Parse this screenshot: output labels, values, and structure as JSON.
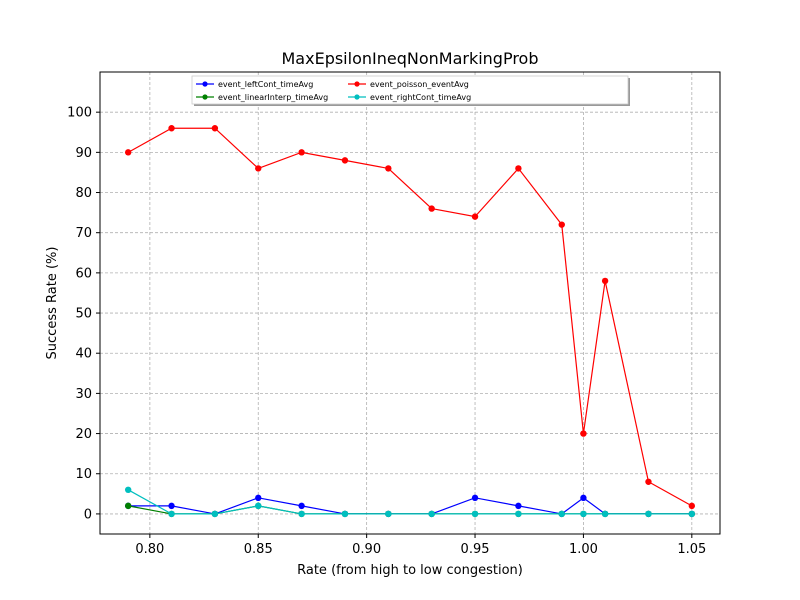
{
  "chart_data": {
    "type": "line",
    "title": "MaxEpsilonIneqNonMarkingProb",
    "xlabel": "Rate (from high to low congestion)",
    "ylabel": "Success Rate (%)",
    "xlim": [
      0.777,
      1.063
    ],
    "ylim": [
      -5,
      110
    ],
    "xticks": [
      "0.80",
      "0.85",
      "0.90",
      "0.95",
      "1.00",
      "1.05"
    ],
    "xtick_values": [
      0.8,
      0.85,
      0.9,
      0.95,
      1.0,
      1.05
    ],
    "yticks": [
      "0",
      "10",
      "20",
      "30",
      "40",
      "50",
      "60",
      "70",
      "80",
      "90",
      "100"
    ],
    "ytick_values": [
      0,
      10,
      20,
      30,
      40,
      50,
      60,
      70,
      80,
      90,
      100
    ],
    "grid": true,
    "legend_position": "top-center",
    "x": [
      0.79,
      0.81,
      0.83,
      0.85,
      0.87,
      0.89,
      0.91,
      0.93,
      0.95,
      0.97,
      0.99,
      1.0,
      1.01,
      1.03,
      1.05
    ],
    "series": [
      {
        "name": "event_leftCont_timeAvg",
        "color": "#0000ff",
        "values": [
          2,
          2,
          0,
          4,
          2,
          0,
          0,
          0,
          4,
          2,
          0,
          4,
          0,
          0,
          0
        ]
      },
      {
        "name": "event_linearInterp_timeAvg",
        "color": "#008000",
        "values": [
          2,
          0,
          0,
          2,
          0,
          0,
          0,
          0,
          0,
          0,
          0,
          0,
          0,
          0,
          0
        ]
      },
      {
        "name": "event_poisson_eventAvg",
        "color": "#ff0000",
        "values": [
          90,
          96,
          96,
          86,
          90,
          88,
          86,
          76,
          74,
          86,
          72,
          20,
          58,
          8,
          2
        ]
      },
      {
        "name": "event_rightCont_timeAvg",
        "color": "#00bfbf",
        "values": [
          6,
          0,
          0,
          2,
          0,
          0,
          0,
          0,
          0,
          0,
          0,
          0,
          0,
          0,
          0
        ]
      }
    ]
  }
}
